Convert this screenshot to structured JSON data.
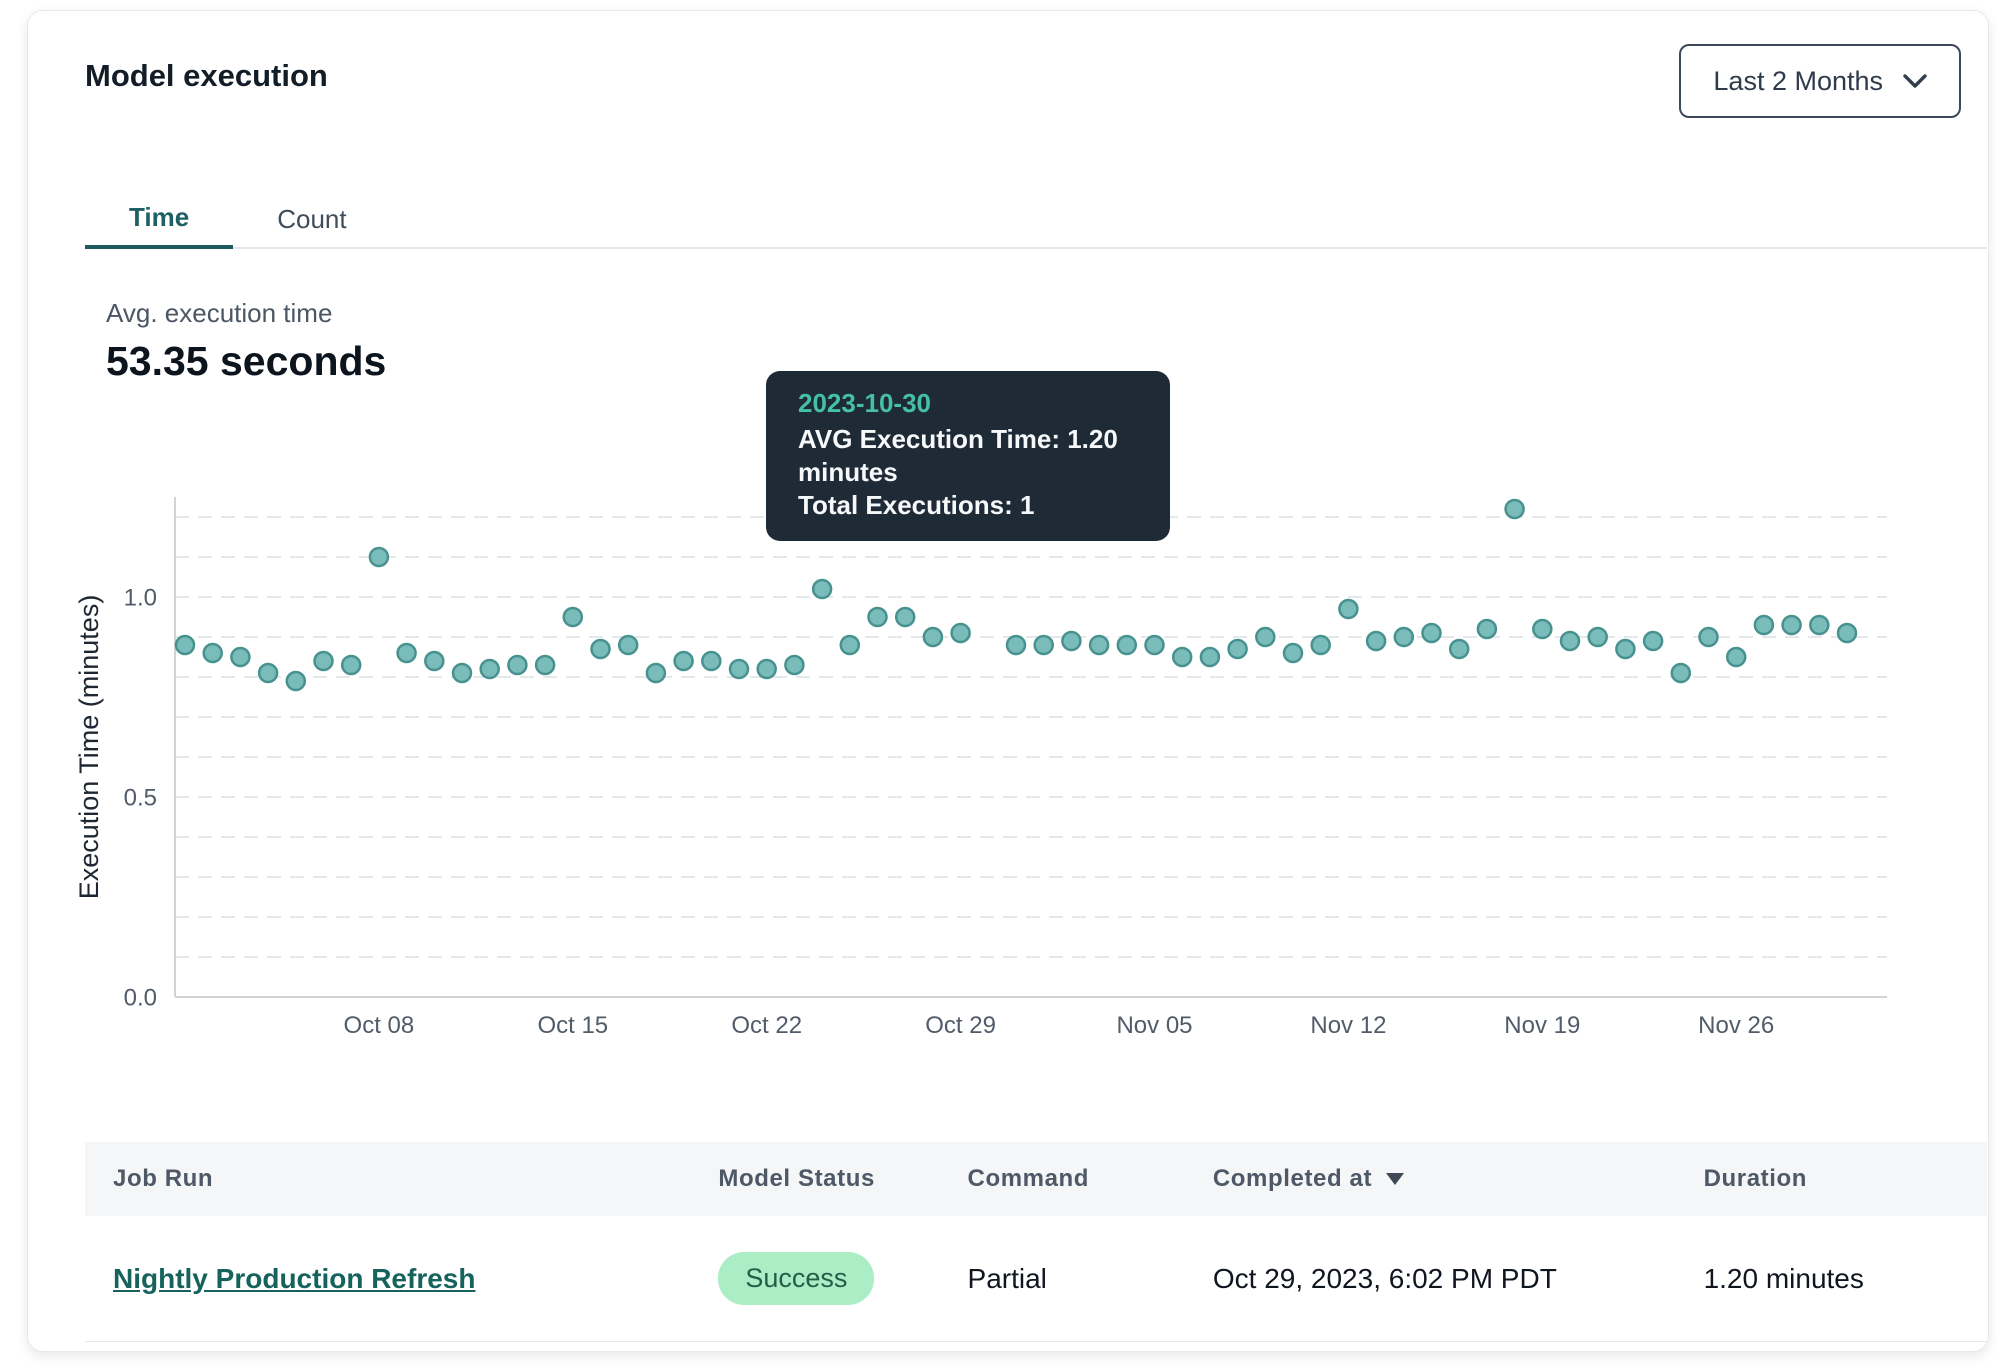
{
  "card": {
    "title": "Model execution",
    "period_selector": {
      "label": "Last 2 Months"
    },
    "tabs": [
      {
        "label": "Time",
        "active": true
      },
      {
        "label": "Count",
        "active": false
      }
    ],
    "summary": {
      "label": "Avg. execution time",
      "value": "53.35 seconds"
    }
  },
  "chart_data": {
    "type": "scatter",
    "title": "",
    "xlabel": "",
    "ylabel": "Execution Time (minutes)",
    "ylim": [
      0,
      1.25
    ],
    "yticks": [
      0.0,
      0.5,
      1.0
    ],
    "gridline_step": 0.1,
    "grid": "horizontal-dashed",
    "legend_position": "none",
    "x_tick_labels": [
      "Oct 08",
      "Oct 15",
      "Oct 22",
      "Oct 29",
      "Nov 05",
      "Nov 12",
      "Nov 19",
      "Nov 26"
    ],
    "x_tick_indices": [
      7,
      14,
      21,
      28,
      35,
      42,
      49,
      56
    ],
    "series": [
      {
        "name": "AVG Execution Time (minutes)",
        "dates": [
          "2023-10-01",
          "2023-10-02",
          "2023-10-03",
          "2023-10-04",
          "2023-10-05",
          "2023-10-06",
          "2023-10-07",
          "2023-10-08",
          "2023-10-09",
          "2023-10-10",
          "2023-10-11",
          "2023-10-12",
          "2023-10-13",
          "2023-10-14",
          "2023-10-15",
          "2023-10-16",
          "2023-10-17",
          "2023-10-18",
          "2023-10-19",
          "2023-10-20",
          "2023-10-21",
          "2023-10-22",
          "2023-10-23",
          "2023-10-24",
          "2023-10-25",
          "2023-10-26",
          "2023-10-27",
          "2023-10-28",
          "2023-10-29",
          "2023-10-30",
          "2023-10-31",
          "2023-11-01",
          "2023-11-02",
          "2023-11-03",
          "2023-11-04",
          "2023-11-05",
          "2023-11-06",
          "2023-11-07",
          "2023-11-08",
          "2023-11-09",
          "2023-11-10",
          "2023-11-11",
          "2023-11-12",
          "2023-11-13",
          "2023-11-14",
          "2023-11-15",
          "2023-11-16",
          "2023-11-17",
          "2023-11-18",
          "2023-11-19",
          "2023-11-20",
          "2023-11-21",
          "2023-11-22",
          "2023-11-23",
          "2023-11-24",
          "2023-11-25",
          "2023-11-26",
          "2023-11-27",
          "2023-11-28",
          "2023-11-29",
          "2023-11-30"
        ],
        "values": [
          0.88,
          0.86,
          0.85,
          0.81,
          0.79,
          0.84,
          0.83,
          1.1,
          0.86,
          0.84,
          0.81,
          0.82,
          0.83,
          0.83,
          0.95,
          0.87,
          0.88,
          0.81,
          0.84,
          0.84,
          0.82,
          0.82,
          0.83,
          1.02,
          0.88,
          0.95,
          0.95,
          0.9,
          0.91,
          1.2,
          0.88,
          0.88,
          0.89,
          0.88,
          0.88,
          0.88,
          0.85,
          0.85,
          0.87,
          0.9,
          0.86,
          0.88,
          0.97,
          0.89,
          0.9,
          0.91,
          0.87,
          0.92,
          1.22,
          0.92,
          0.89,
          0.9,
          0.87,
          0.89,
          0.81,
          0.9,
          0.85,
          0.93,
          0.93,
          0.93,
          0.91
        ]
      }
    ],
    "highlight": {
      "index": 29,
      "date": "2023-10-30",
      "value": 1.2
    },
    "tooltip": {
      "date": "2023-10-30",
      "line1": "AVG Execution Time: 1.20 minutes",
      "line2": "Total Executions: 1"
    }
  },
  "table": {
    "columns": [
      {
        "label": "Job Run"
      },
      {
        "label": "Model Status"
      },
      {
        "label": "Command"
      },
      {
        "label": "Completed at",
        "sorted": "desc"
      },
      {
        "label": "Duration"
      }
    ],
    "rows": [
      {
        "job_run": "Nightly Production Refresh",
        "model_status": "Success",
        "command": "Partial",
        "completed_at": "Oct 29, 2023, 6:02 PM PDT",
        "duration": "1.20 minutes"
      }
    ]
  },
  "colors": {
    "accent_teal": "#1e5a5e",
    "point_fill": "#7abcba",
    "point_stroke": "#47928f",
    "point_highlight": "#4a8f8d",
    "tooltip_bg": "#1f2a37",
    "tooltip_date": "#45c0a7",
    "grid": "#e5e8eb",
    "axis": "#cfd4d9",
    "tick_label": "#525c68",
    "axis_title": "#1d2631",
    "badge_bg": "#abedc4",
    "badge_text": "#265c48",
    "link": "#15635c"
  }
}
